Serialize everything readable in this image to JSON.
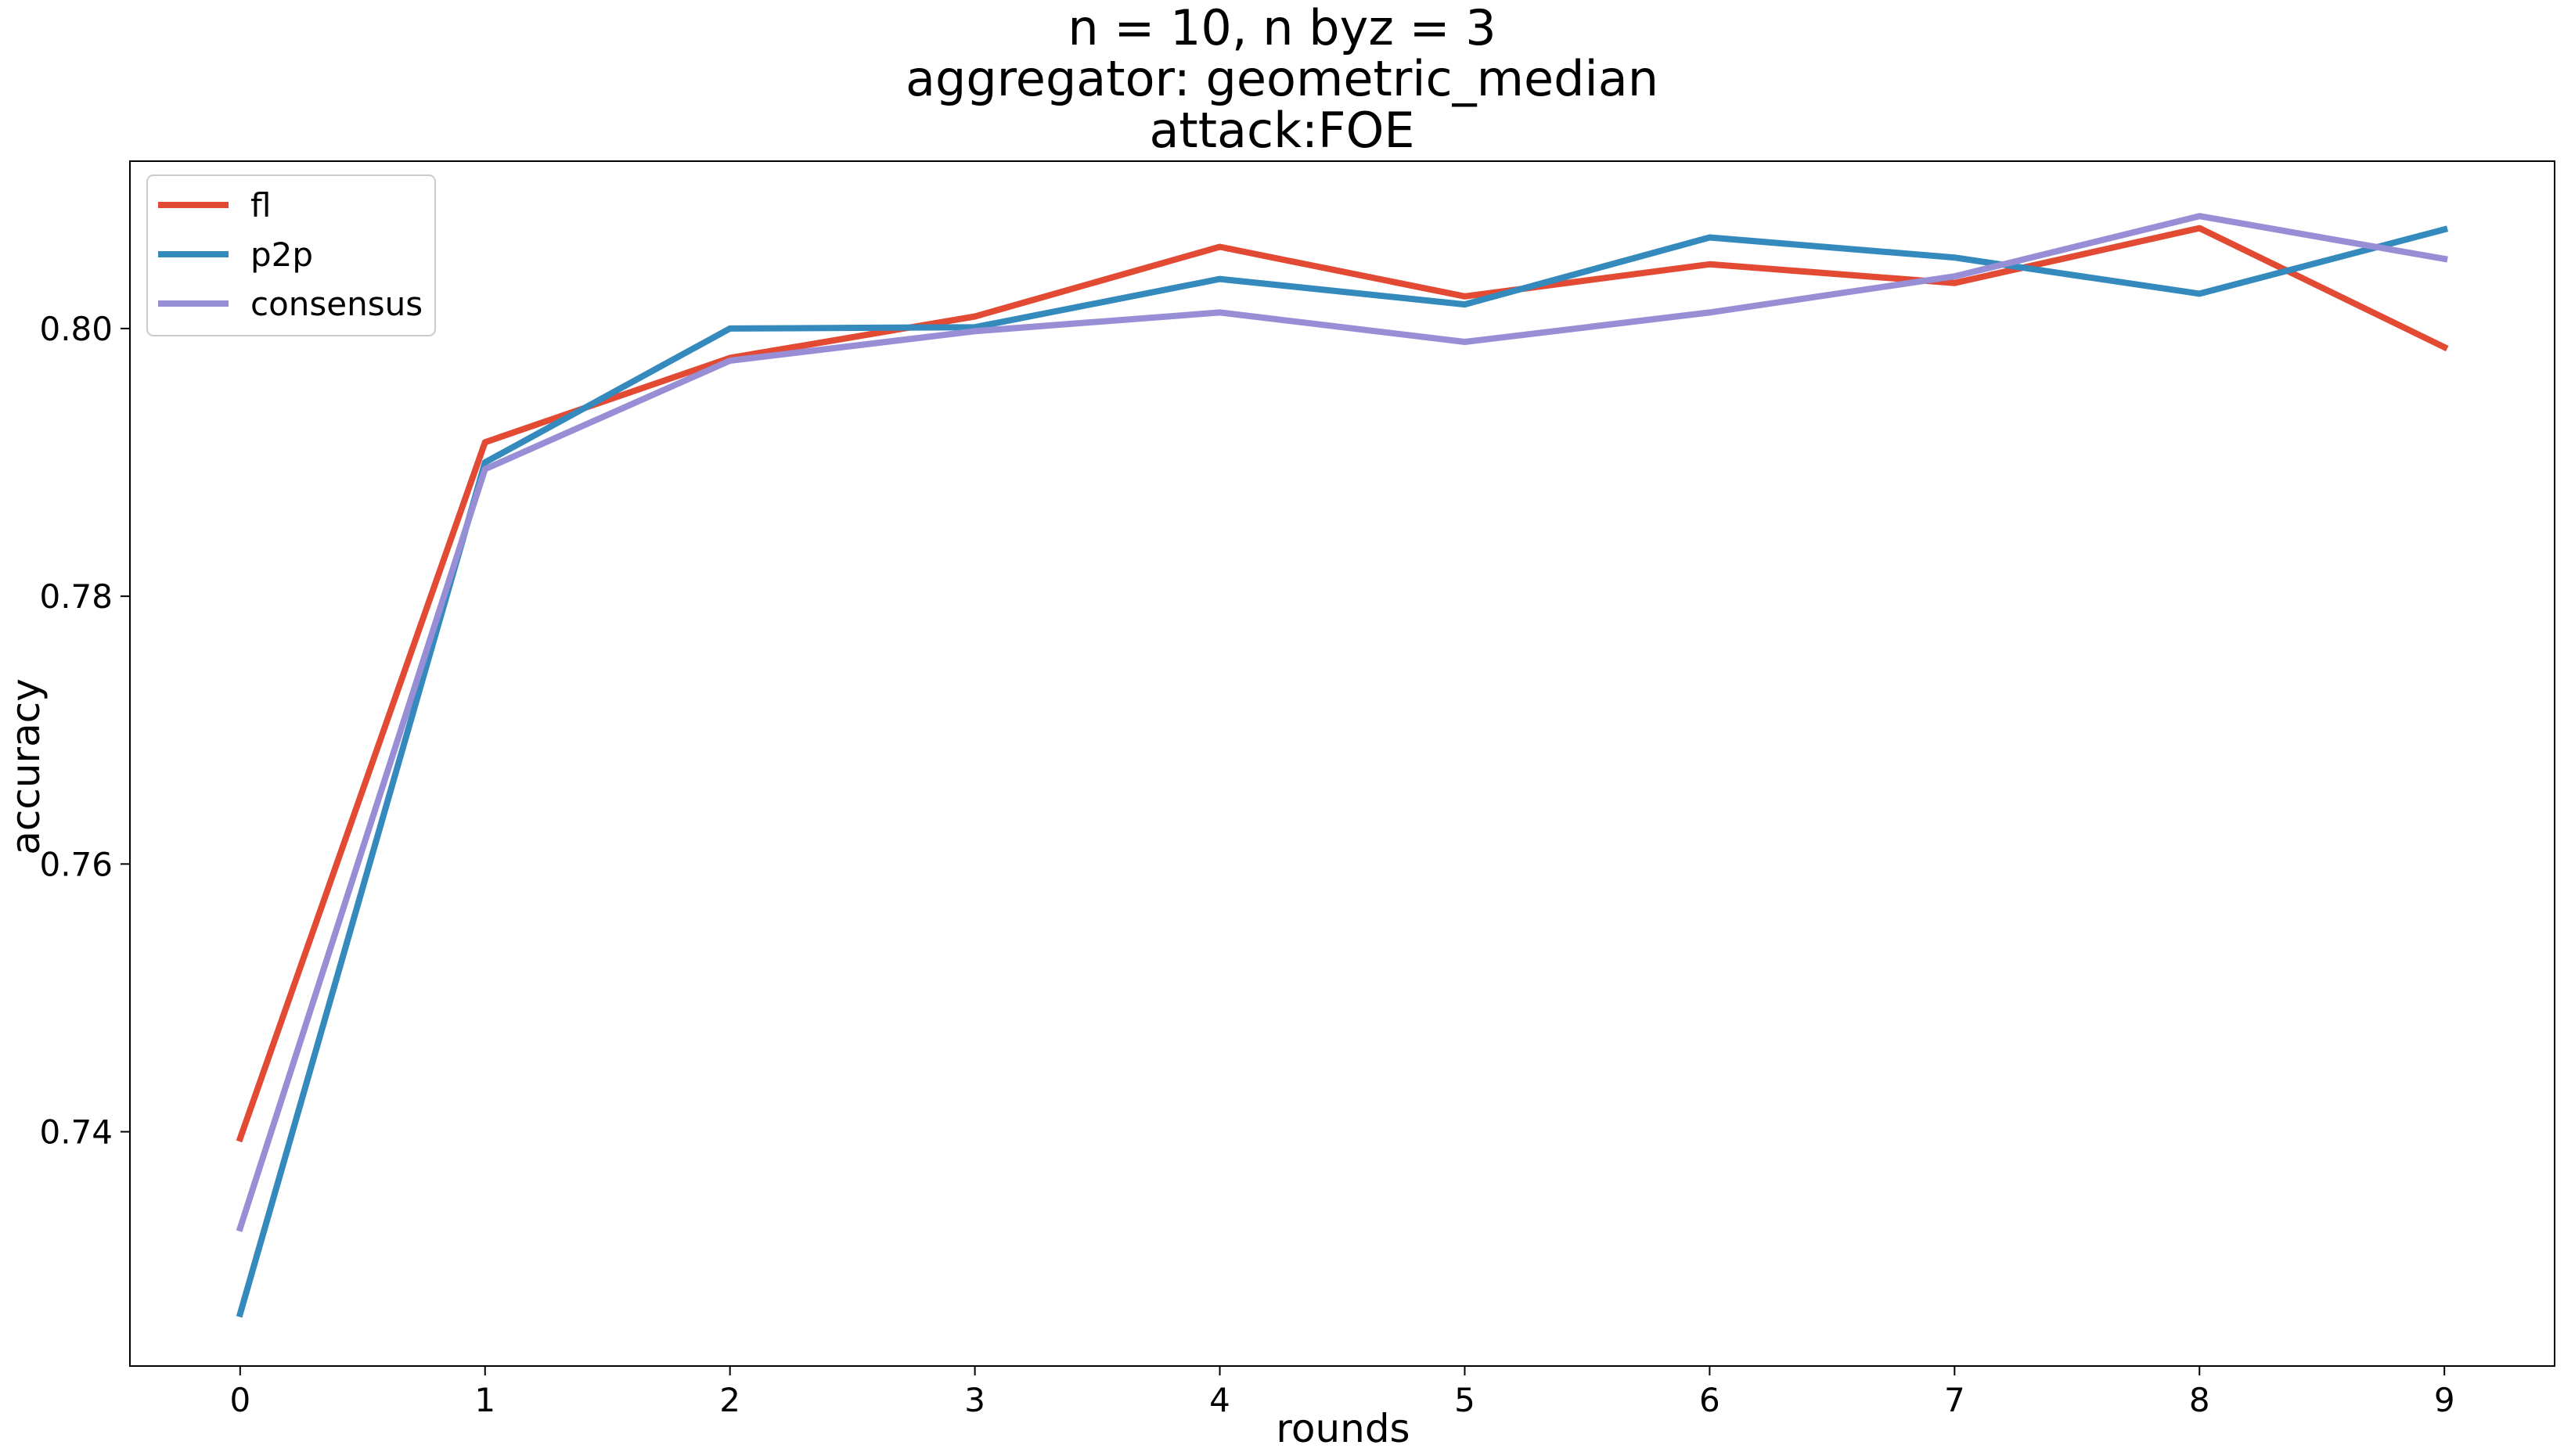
{
  "chart_data": {
    "type": "line",
    "title_lines": [
      "n = 10, n byz = 3",
      "aggregator: geometric_median",
      "attack:FOE"
    ],
    "xlabel": "rounds",
    "ylabel": "accuracy",
    "x": [
      0,
      1,
      2,
      3,
      4,
      5,
      6,
      7,
      8,
      9
    ],
    "xticks": [
      "0",
      "1",
      "2",
      "3",
      "4",
      "5",
      "6",
      "7",
      "8",
      "9"
    ],
    "yticks": [
      0.74,
      0.76,
      0.78,
      0.8
    ],
    "ytick_labels": [
      "0.74",
      "0.76",
      "0.78",
      "0.80"
    ],
    "xlim": [
      -0.45,
      9.45
    ],
    "ylim": [
      0.7225,
      0.8125
    ],
    "grid": false,
    "legend_position": "upper-left",
    "series": [
      {
        "name": "fl",
        "color": "#E24A33",
        "values": [
          0.7395,
          0.7915,
          0.7978,
          0.8009,
          0.8061,
          0.8024,
          0.8048,
          0.8034,
          0.8075,
          0.7986
        ]
      },
      {
        "name": "p2p",
        "color": "#348ABD",
        "values": [
          0.7264,
          0.79,
          0.8,
          0.8001,
          0.8037,
          0.8018,
          0.8068,
          0.8053,
          0.8026,
          0.8074
        ]
      },
      {
        "name": "consensus",
        "color": "#988ED5",
        "values": [
          0.7328,
          0.7895,
          0.7976,
          0.7998,
          0.8012,
          0.799,
          0.8012,
          0.8039,
          0.8084,
          0.8052
        ]
      }
    ]
  }
}
